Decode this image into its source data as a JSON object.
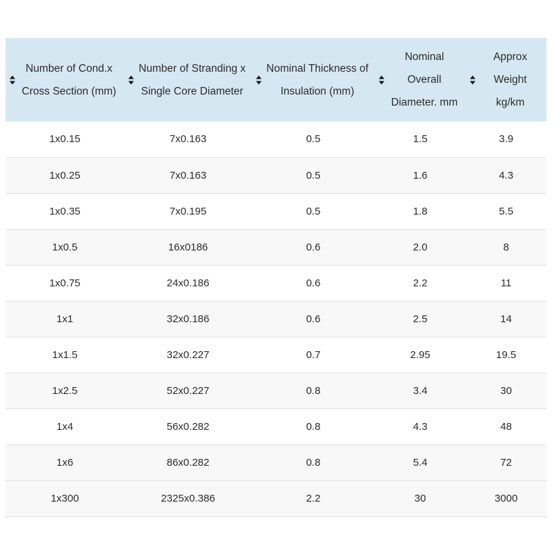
{
  "colors": {
    "header_bg": "#d5e8f2",
    "row_stripe": "#f8f8f8",
    "border": "#e2e2e2",
    "text": "#2b2b2b",
    "sort_icon": "#111111"
  },
  "table": {
    "columns": [
      {
        "id": "conductor",
        "label_lines": [
          "Number of Cond.x",
          "Cross Section (mm)"
        ]
      },
      {
        "id": "stranding",
        "label_lines": [
          "Number of Stranding x",
          "Single Core Diameter"
        ]
      },
      {
        "id": "insulation",
        "label_lines": [
          "Nominal Thickness of",
          "Insulation (mm)"
        ]
      },
      {
        "id": "diameter",
        "label_lines": [
          "Nominal",
          "Overall",
          "Diameter. mm"
        ]
      },
      {
        "id": "weight",
        "label_lines": [
          "Approx",
          "Weight",
          "kg/km"
        ]
      }
    ],
    "rows": [
      {
        "shaded": false,
        "cells": [
          "1x0.15",
          "7x0.163",
          "0.5",
          "1.5",
          "3.9"
        ]
      },
      {
        "shaded": true,
        "cells": [
          "1x0.25",
          "7x0.163",
          "0.5",
          "1.6",
          "4.3"
        ]
      },
      {
        "shaded": false,
        "cells": [
          "1x0.35",
          "7x0.195",
          "0.5",
          "1.8",
          "5.5"
        ]
      },
      {
        "shaded": true,
        "cells": [
          "1x0.5",
          "16x0186",
          "0.6",
          "2.0",
          "8"
        ]
      },
      {
        "shaded": false,
        "cells": [
          "1x0.75",
          "24x0.186",
          "0.6",
          "2.2",
          "11"
        ]
      },
      {
        "shaded": true,
        "cells": [
          "1x1",
          "32x0.186",
          "0.6",
          "2.5",
          "14"
        ]
      },
      {
        "shaded": false,
        "cells": [
          "1x1.5",
          "32x0.227",
          "0.7",
          "2.95",
          "19.5"
        ]
      },
      {
        "shaded": true,
        "cells": [
          "1x2.5",
          "52x0.227",
          "0.8",
          "3.4",
          "30"
        ]
      },
      {
        "shaded": false,
        "cells": [
          "1x4",
          "56x0.282",
          "0.8",
          "4.3",
          "48"
        ]
      },
      {
        "shaded": true,
        "cells": [
          "1x6",
          "86x0.282",
          "0.8",
          "5.4",
          "72"
        ]
      },
      {
        "shaded": true,
        "cells": [
          "1x300",
          "2325x0.386",
          "2.2",
          "30",
          "3000"
        ]
      }
    ]
  }
}
